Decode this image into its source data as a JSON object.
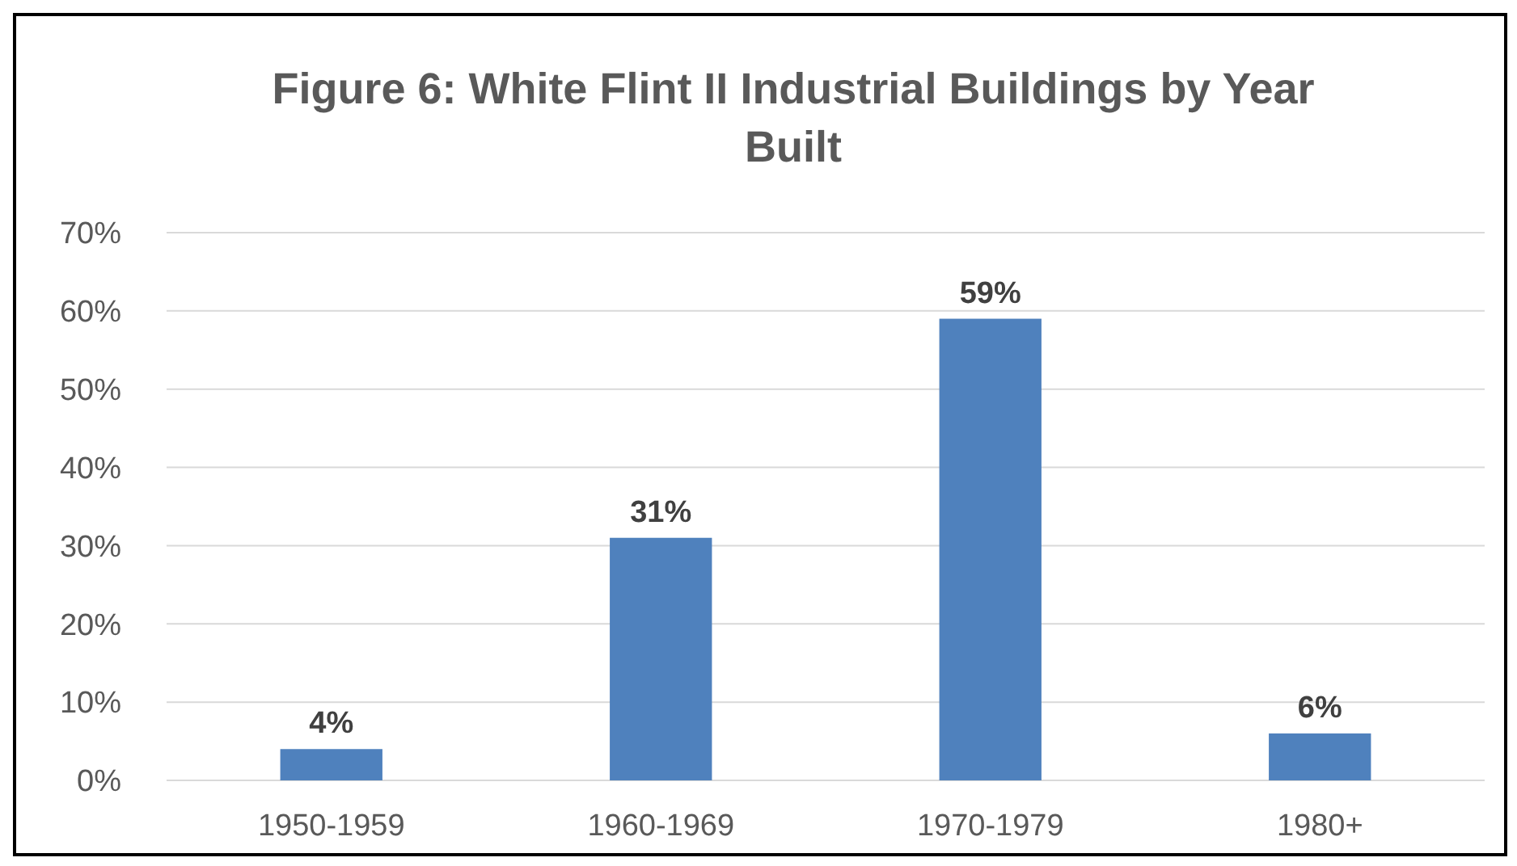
{
  "chart_data": {
    "type": "bar",
    "title": "Figure 6: White Flint II Industrial Buildings by Year Built",
    "categories": [
      "1950-1959",
      "1960-1969",
      "1970-1979",
      "1980+"
    ],
    "values": [
      4,
      31,
      59,
      6
    ],
    "color": "#4f81bd",
    "value_labels": [
      "4%",
      "31%",
      "59%",
      "6%"
    ],
    "ylim": [
      0,
      70
    ],
    "yticks": [
      {
        "value": 0,
        "label": "0%"
      },
      {
        "value": 10,
        "label": "10%"
      },
      {
        "value": 20,
        "label": "20%"
      },
      {
        "value": 30,
        "label": "30%"
      },
      {
        "value": 40,
        "label": "40%"
      },
      {
        "value": 50,
        "label": "50%"
      },
      {
        "value": 60,
        "label": "60%"
      },
      {
        "value": 70,
        "label": "70%"
      }
    ],
    "grid": true
  }
}
